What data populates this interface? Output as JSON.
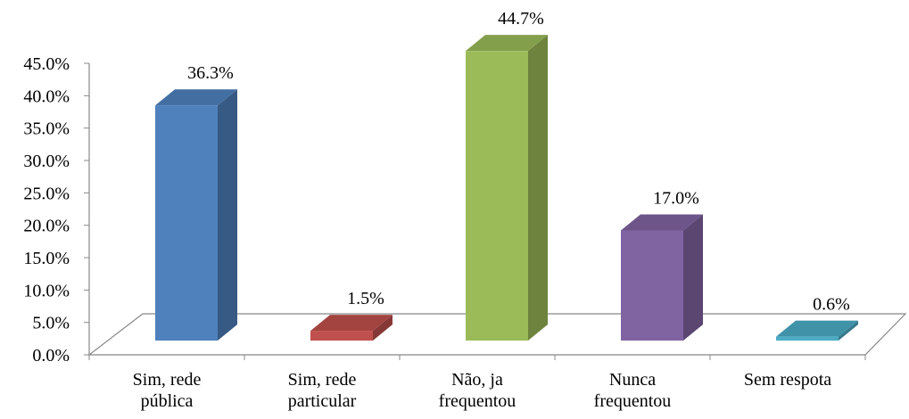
{
  "chart_data": {
    "type": "bar3d",
    "categories": [
      "Sim, rede pública",
      "Sim, rede particular",
      "Não, ja frequentou",
      "Nunca frequentou",
      "Sem respota"
    ],
    "values": [
      36.3,
      1.5,
      44.7,
      17.0,
      0.6
    ],
    "value_labels": [
      "36.3%",
      "1.5%",
      "44.7%",
      "17.0%",
      "0.6%"
    ],
    "colors": [
      "#4f81bd",
      "#c0504d",
      "#9bbb59",
      "#8064a2",
      "#4bacc6"
    ],
    "ylim": [
      0,
      45
    ],
    "yticks": [
      {
        "value": 0,
        "label": "0.0%"
      },
      {
        "value": 5,
        "label": "5.0%"
      },
      {
        "value": 10,
        "label": "10.0%"
      },
      {
        "value": 15,
        "label": "15.0%"
      },
      {
        "value": 20,
        "label": "20.0%"
      },
      {
        "value": 25,
        "label": "25.0%"
      },
      {
        "value": 30,
        "label": "30.0%"
      },
      {
        "value": 35,
        "label": "35.0%"
      },
      {
        "value": 40,
        "label": "40.0%"
      },
      {
        "value": 45,
        "label": "45.0%"
      }
    ]
  }
}
